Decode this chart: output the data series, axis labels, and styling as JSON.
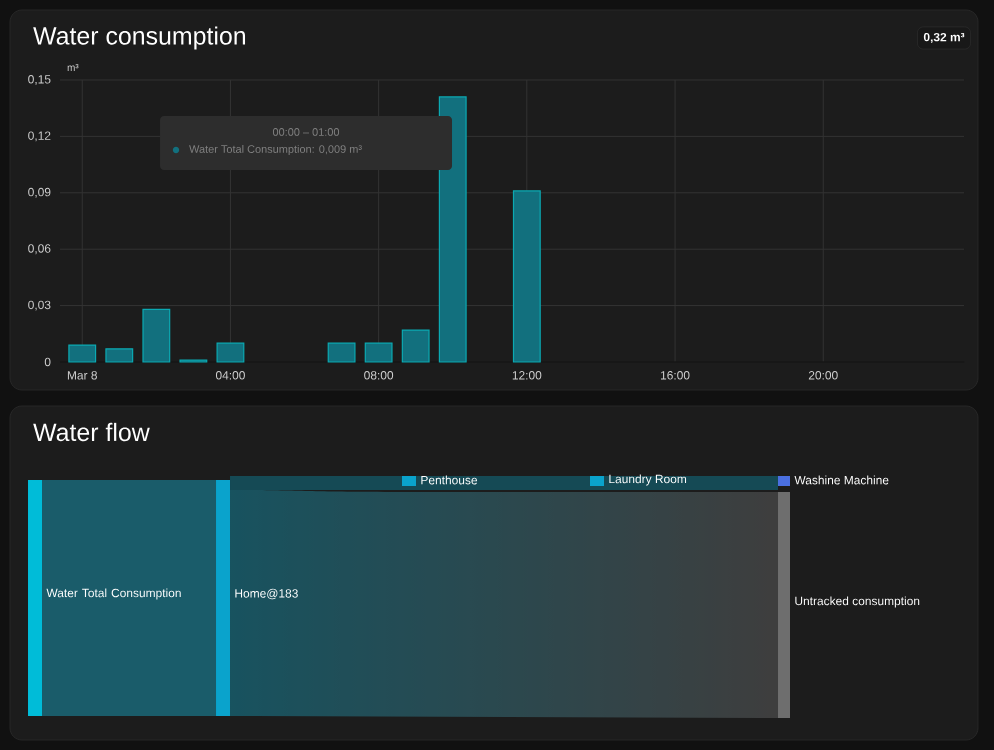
{
  "chart_data": [
    {
      "type": "bar",
      "title": "Water consumption",
      "ylabel": "m³",
      "annotations": [
        "0,32 m³",
        "00:00 – 01:00",
        "Water Total Consumption: 0,009 m³"
      ],
      "x": [
        0,
        1,
        2,
        3,
        4,
        7,
        8,
        9,
        10,
        12
      ],
      "values": [
        0.009,
        0.007,
        0.028,
        0.001,
        0.01,
        0.01,
        0.01,
        0.017,
        0.141,
        0.091
      ],
      "color": "#12707e",
      "xlim": [
        -0.6,
        23.8
      ],
      "ylim": [
        0,
        0.15
      ],
      "xticks": [
        {
          "value": 0,
          "label": "Mar 8"
        },
        {
          "value": 4,
          "label": "04:00"
        },
        {
          "value": 8,
          "label": "08:00"
        },
        {
          "value": 12,
          "label": "12:00"
        },
        {
          "value": 16,
          "label": "16:00"
        },
        {
          "value": 20,
          "label": "20:00"
        }
      ],
      "yticks": [
        0,
        {
          "value": 0.03,
          "label": "0,03"
        },
        {
          "value": 0.06,
          "label": "0,06"
        },
        {
          "value": 0.09,
          "label": "0,09"
        },
        {
          "value": 0.12,
          "label": "0,12"
        },
        {
          "value": 0.15,
          "label": "0,15"
        }
      ],
      "grid": true
    },
    {
      "type": "other",
      "title": "Water flow",
      "annotations": [
        "Water Total Consumption",
        "Home@183",
        "Penthouse",
        "Laundry Room",
        "Washine Machine",
        "Untracked consumption"
      ]
    }
  ]
}
